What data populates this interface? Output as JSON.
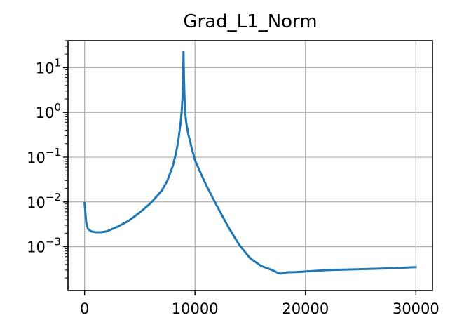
{
  "chart_data": {
    "type": "line",
    "title": "Grad_L1_Norm",
    "xlabel": "",
    "ylabel": "",
    "x_scale": "linear",
    "y_scale": "log",
    "xlim": [
      -1500,
      31500
    ],
    "ylim": [
      0.000105,
      40
    ],
    "grid": true,
    "legend": "none",
    "line_color": "#1f77b4",
    "grid_color": "#b0b0b0",
    "x_ticks": [
      {
        "value": 0,
        "label": "0"
      },
      {
        "value": 10000,
        "label": "10000"
      },
      {
        "value": 20000,
        "label": "20000"
      },
      {
        "value": 30000,
        "label": "30000"
      }
    ],
    "y_ticks": [
      {
        "value": 0.001,
        "base": "10",
        "exp": "−3"
      },
      {
        "value": 0.01,
        "base": "10",
        "exp": "−2"
      },
      {
        "value": 0.1,
        "base": "10",
        "exp": "−1"
      },
      {
        "value": 1,
        "base": "10",
        "exp": "0"
      },
      {
        "value": 10,
        "base": "10",
        "exp": "1"
      }
    ],
    "series": [
      {
        "x": [
          0,
          150,
          300,
          600,
          1000,
          1500,
          2000,
          3000,
          4000,
          5000,
          6000,
          7000,
          7500,
          8000,
          8300,
          8500,
          8700,
          8800,
          8870,
          8920,
          8960,
          9000,
          9050,
          9100,
          9200,
          9400,
          9700,
          10000,
          10500,
          11000,
          12000,
          13000,
          14000,
          15000,
          16000,
          17000,
          17500,
          17800,
          18000,
          18500,
          19000,
          20000,
          22000,
          24000,
          26000,
          28000,
          30000
        ],
        "y": [
          0.0095,
          0.0035,
          0.0025,
          0.0022,
          0.0021,
          0.0021,
          0.0022,
          0.0028,
          0.0038,
          0.0058,
          0.0095,
          0.018,
          0.03,
          0.065,
          0.13,
          0.25,
          0.6,
          1.1,
          2.2,
          6,
          23,
          6,
          2.2,
          1.1,
          0.6,
          0.32,
          0.16,
          0.085,
          0.045,
          0.024,
          0.008,
          0.0028,
          0.0011,
          0.00055,
          0.00037,
          0.0003,
          0.00026,
          0.00025,
          0.00026,
          0.00027,
          0.00027,
          0.00028,
          0.0003,
          0.00031,
          0.00032,
          0.00033,
          0.00035
        ]
      }
    ]
  }
}
